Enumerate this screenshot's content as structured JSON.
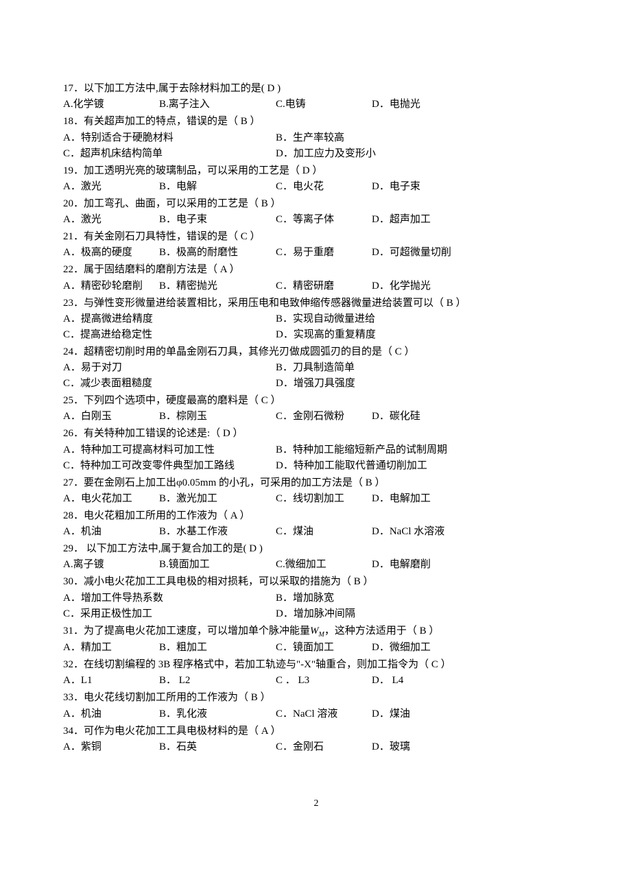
{
  "page_number": "2",
  "font": {
    "body_size_pt": 11,
    "line_height": 1.55,
    "color": "#000000",
    "background": "#ffffff"
  },
  "questions": [
    {
      "num": "17",
      "stem": "以下加工方法中,属于去除材料加工的是(   D   )",
      "opts": [
        {
          "label": "A.化学镀",
          "col": 0
        },
        {
          "label": "B.离子注入",
          "col": 1
        },
        {
          "label": "C.电铸",
          "col": 2
        },
        {
          "label": "D．电抛光",
          "col": 3
        }
      ]
    },
    {
      "num": "18",
      "stem": "有关超声加工的特点，错误的是（    B     ）",
      "opts_2col": [
        [
          "A．特别适合于硬脆材料",
          "B．生产率较高"
        ],
        [
          "C．超声机床结构简单",
          "D．加工应力及变形小"
        ]
      ]
    },
    {
      "num": "19",
      "stem": "加工透明光亮的玻璃制品，可以采用的工艺是（    D      ）",
      "opts": [
        {
          "label": "A．激光",
          "col": 0
        },
        {
          "label": "B．电解",
          "col": 1
        },
        {
          "label": "C．电火花",
          "col": 2
        },
        {
          "label": "D．电子束",
          "col": 3
        }
      ]
    },
    {
      "num": "20",
      "stem": "加工弯孔、曲面，可以采用的工艺是（    B     ）",
      "opts": [
        {
          "label": "A．激光",
          "col": 0
        },
        {
          "label": "B．电子束",
          "col": 1
        },
        {
          "label": "C．等离子体",
          "col": 2
        },
        {
          "label": "D．超声加工",
          "col": 3
        }
      ]
    },
    {
      "num": "21",
      "stem": "有关金刚石刀具特性，错误的是（    C     ）",
      "opts": [
        {
          "label": "A．极高的硬度",
          "col": 0
        },
        {
          "label": "B．极高的耐磨性",
          "col": 1
        },
        {
          "label": "C．易于重磨",
          "col": 2
        },
        {
          "label": "D．可超微量切削",
          "col": 3
        }
      ]
    },
    {
      "num": "22",
      "stem": "属于固结磨料的磨削方法是（    A     ）",
      "opts": [
        {
          "label": "A．精密砂轮磨削",
          "col": 0
        },
        {
          "label": "B．精密抛光",
          "col": 1
        },
        {
          "label": "C．精密研磨",
          "col": 2
        },
        {
          "label": "D．化学抛光",
          "col": 3
        }
      ]
    },
    {
      "num": "23",
      "stem": "与弹性变形微量进给装置相比，采用压电和电致伸缩传感器微量进给装置可以（    B     ）",
      "opts_2col": [
        [
          "A．提高微进给精度",
          "B．实现自动微量进给"
        ],
        [
          "C．提高进给稳定性",
          "D．实现高的重复精度"
        ]
      ]
    },
    {
      "num": "24",
      "stem": "超精密切削时用的单晶金刚石刀具，其修光刃做成圆弧刃的目的是（    C      ）",
      "opts_2col": [
        [
          "A．易于对刀",
          "B．刀具制造简单"
        ],
        [
          "C．减少表面粗糙度",
          "D．增强刀具强度"
        ]
      ]
    },
    {
      "num": "25",
      "stem": "下列四个选项中，硬度最高的磨料是（     C    ）",
      "opts": [
        {
          "label": "A．白刚玉",
          "col": 0
        },
        {
          "label": "B．棕刚玉",
          "col": 1
        },
        {
          "label": "C．金刚石微粉",
          "col": 2
        },
        {
          "label": "D．碳化硅",
          "col": 3
        }
      ]
    },
    {
      "num": "26",
      "stem": "有关特种加工错误的论述是:（    D      ）",
      "opts_2col": [
        [
          "A．特种加工可提高材料可加工性",
          "B．特种加工能缩短新产品的试制周期"
        ],
        [
          "C．特种加工可改变零件典型加工路线",
          "D．特种加工能取代普通切削加工"
        ]
      ]
    },
    {
      "num": "27",
      "stem": "要在金刚石上加工出φ0.05mm 的小孔，可采用的加工方法是（   B     ）",
      "opts": [
        {
          "label": "A．电火花加工",
          "col": 0
        },
        {
          "label": "B．激光加工",
          "col": 1
        },
        {
          "label": "C．线切割加工",
          "col": 2
        },
        {
          "label": "D．电解加工",
          "col": 3
        }
      ]
    },
    {
      "num": "28",
      "stem": "电火花粗加工所用的工作液为（    A      ）",
      "opts": [
        {
          "label": "A．机油",
          "col": 0
        },
        {
          "label": "B．水基工作液",
          "col": 1
        },
        {
          "label": "C．煤油",
          "col": 2
        },
        {
          "label": "D．NaCl 水溶液",
          "col": 3
        }
      ]
    },
    {
      "num": "29",
      "stem": " 以下加工方法中,属于复合加工的是(    D    )",
      "opts": [
        {
          "label": "A.离子镀",
          "col": 0
        },
        {
          "label": "B.镜面加工",
          "col": 1
        },
        {
          "label": "C.微细加工",
          "col": 2
        },
        {
          "label": "D．电解磨削",
          "col": 3
        }
      ]
    },
    {
      "num": "30",
      "stem": "减小电火花加工工具电极的相对损耗，可以采取的措施为（    B    ）",
      "opts_2col": [
        [
          "A．增加工件导热系数",
          "B．增加脉宽"
        ],
        [
          "C．采用正极性加工",
          "D．增加脉冲间隔"
        ]
      ]
    },
    {
      "num": "31",
      "stem_prefix": "为了提高电火花加工速度，可以增加单个脉冲能量",
      "stem_var": "W",
      "stem_sub": "M",
      "stem_suffix": "，这种方法适用于（   B    ）",
      "opts": [
        {
          "label": "A．精加工",
          "col": 0
        },
        {
          "label": "B．粗加工",
          "col": 1
        },
        {
          "label": "C．镜面加工",
          "col": 2
        },
        {
          "label": "D．微细加工",
          "col": 3
        }
      ]
    },
    {
      "num": "32",
      "stem": "在线切割编程的 3B 程序格式中，若加工轨迹与\"-X\"轴重合，则加工指令为（   C    ）",
      "opts": [
        {
          "label": "A．L1",
          "col": 0
        },
        {
          "label": "B． L2",
          "col": 1
        },
        {
          "label": "C ． L3",
          "col": 2
        },
        {
          "label": "D． L4",
          "col": 3
        }
      ]
    },
    {
      "num": "33",
      "stem": "电火花线切割加工所用的工作液为（    B    ）",
      "opts": [
        {
          "label": "A．机油",
          "col": 0
        },
        {
          "label": "B．乳化液",
          "col": 1
        },
        {
          "label": "C．NaCl 溶液",
          "col": 2
        },
        {
          "label": "D．煤油",
          "col": 3
        }
      ]
    },
    {
      "num": "34",
      "stem": "可作为电火花加工工具电极材料的是（   A     ）",
      "opts": [
        {
          "label": "A．紫铜",
          "col": 0
        },
        {
          "label": "B．石英",
          "col": 1
        },
        {
          "label": "C．金刚石",
          "col": 2
        },
        {
          "label": "D．玻璃",
          "col": 3
        }
      ]
    }
  ],
  "column_offsets_4": [
    0,
    140,
    310,
    450
  ],
  "column_offsets_2": [
    0,
    310
  ]
}
